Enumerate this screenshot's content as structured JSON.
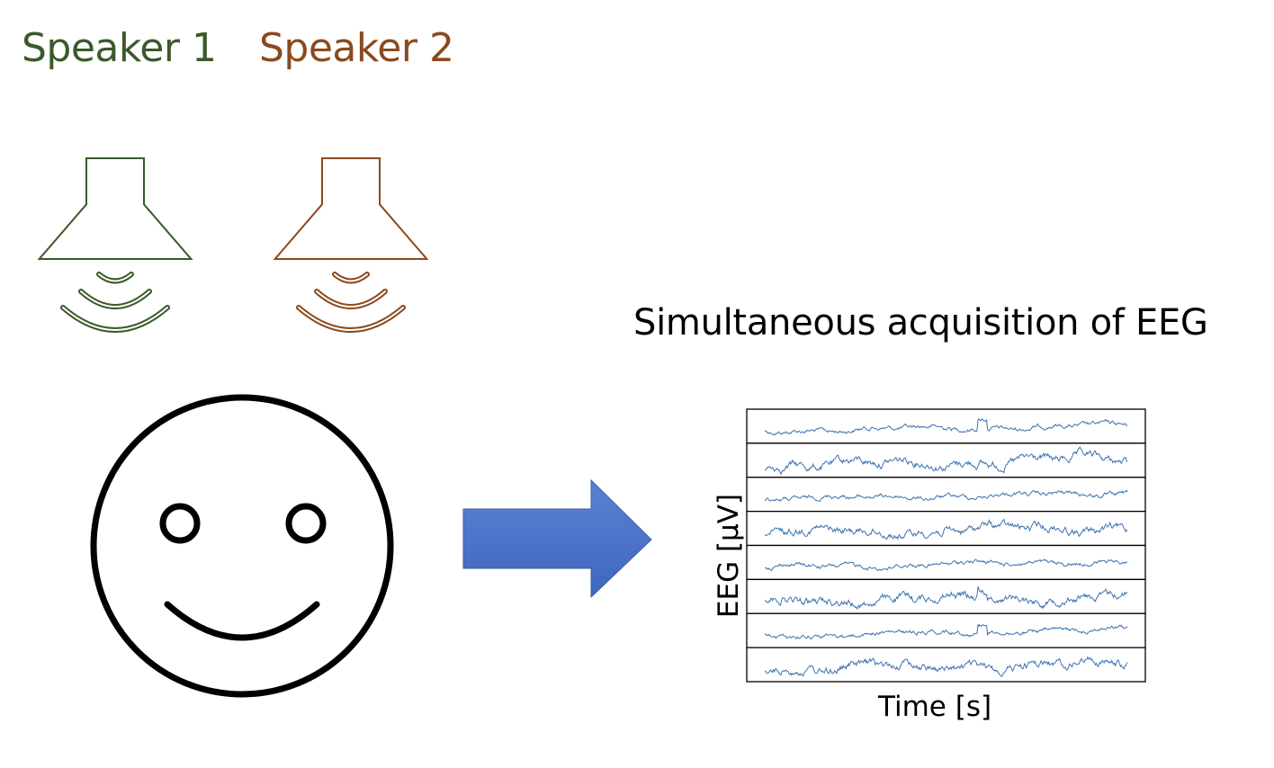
{
  "speakers": [
    {
      "label": "Speaker 1",
      "color": "#3a5a2a",
      "icon": "loudspeaker-icon"
    },
    {
      "label": "Speaker 2",
      "color": "#8a4a1e",
      "icon": "loudspeaker-icon"
    }
  ],
  "listener": {
    "icon": "smiley-face-icon"
  },
  "arrow": {
    "icon": "right-arrow-icon",
    "color": "#4a72c8"
  },
  "eeg": {
    "title": "Simultaneous acquisition of EEG",
    "xlabel": "Time [s]",
    "ylabel": "EEG [μV]",
    "channel_count": 8,
    "trace_color": "#3d74b0"
  }
}
